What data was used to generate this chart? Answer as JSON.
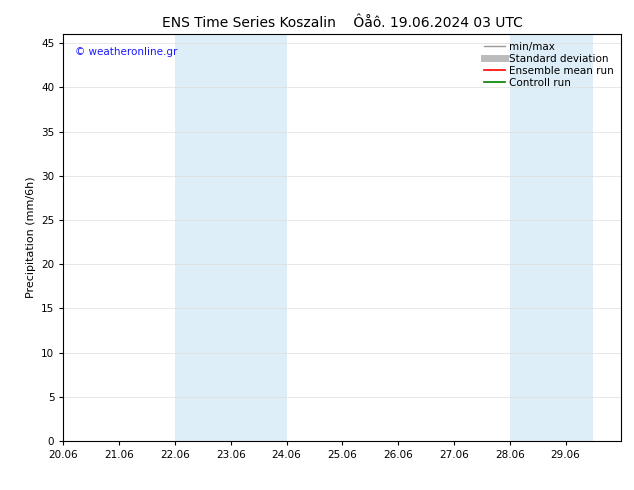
{
  "title": "ENS Time Series Koszalin    Ôåô. 19.06.2024 03 UTC",
  "ylabel": "Precipitation (mm/6h)",
  "ylim": [
    0,
    46
  ],
  "yticks": [
    0,
    5,
    10,
    15,
    20,
    25,
    30,
    35,
    40,
    45
  ],
  "xlim_start": 0,
  "xlim_end": 10,
  "xtick_labels": [
    "20.06",
    "21.06",
    "22.06",
    "23.06",
    "24.06",
    "25.06",
    "26.06",
    "27.06",
    "28.06",
    "29.06"
  ],
  "xtick_positions": [
    0,
    1,
    2,
    3,
    4,
    5,
    6,
    7,
    8,
    9
  ],
  "shaded_bands": [
    {
      "xstart": 2.0,
      "xend": 4.0,
      "color": "#ddeef8"
    },
    {
      "xstart": 8.0,
      "xend": 9.5,
      "color": "#ddeef8"
    }
  ],
  "watermark_text": "© weatheronline.gr",
  "watermark_color": "#1a1aff",
  "legend_items": [
    {
      "label": "min/max",
      "color": "#999999",
      "linewidth": 1.0,
      "linestyle": "-"
    },
    {
      "label": "Standard deviation",
      "color": "#bbbbbb",
      "linewidth": 5,
      "linestyle": "-"
    },
    {
      "label": "Ensemble mean run",
      "color": "#ff0000",
      "linewidth": 1.2,
      "linestyle": "-"
    },
    {
      "label": "Controll run",
      "color": "#008000",
      "linewidth": 1.2,
      "linestyle": "-"
    }
  ],
  "bg_color": "#ffffff",
  "title_fontsize": 10,
  "axis_fontsize": 8,
  "tick_fontsize": 7.5,
  "legend_fontsize": 7.5
}
